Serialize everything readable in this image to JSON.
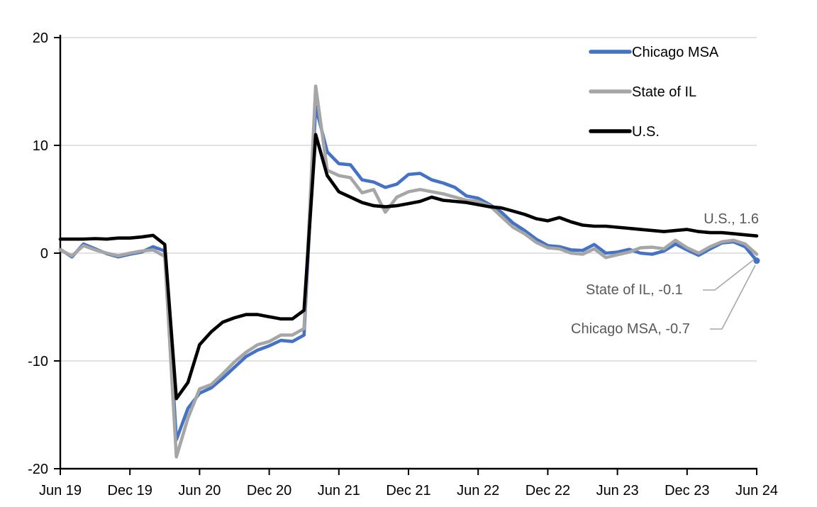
{
  "chart_data": {
    "type": "line",
    "title": "",
    "x_axis": {
      "tick_labels": [
        "Jun 19",
        "Dec 19",
        "Jun 20",
        "Dec 20",
        "Jun 21",
        "Dec 21",
        "Jun 22",
        "Dec 22",
        "Jun 23",
        "Dec 23",
        "Jun 24"
      ],
      "unit": "month",
      "points_per_series": 61
    },
    "y_axis": {
      "tick_labels": [
        "20",
        "10",
        "0",
        "-10",
        "-20"
      ],
      "tick_values": [
        20,
        10,
        0,
        -10,
        -20
      ],
      "ylim": [
        -20,
        20
      ],
      "grid": true
    },
    "series": [
      {
        "name": "Chicago MSA",
        "color": "#4472C4",
        "values": [
          0.35,
          -0.35,
          0.85,
          0.4,
          -0.05,
          -0.35,
          -0.1,
          0.1,
          0.6,
          0.2,
          -17.3,
          -14.4,
          -13.0,
          -12.5,
          -11.6,
          -10.6,
          -9.6,
          -9.0,
          -8.6,
          -8.1,
          -8.2,
          -7.6,
          13.6,
          9.4,
          8.3,
          8.2,
          6.8,
          6.6,
          6.1,
          6.4,
          7.3,
          7.4,
          6.8,
          6.5,
          6.1,
          5.3,
          5.1,
          4.5,
          3.8,
          2.8,
          2.1,
          1.3,
          0.7,
          0.6,
          0.3,
          0.25,
          0.8,
          0.0,
          0.1,
          0.35,
          0.0,
          -0.1,
          0.2,
          0.85,
          0.3,
          -0.2,
          0.4,
          0.95,
          1.05,
          0.6,
          -0.7
        ]
      },
      {
        "name": "State of IL",
        "color": "#A6A6A6",
        "values": [
          0.3,
          -0.25,
          0.7,
          0.3,
          0.0,
          -0.25,
          0.0,
          0.2,
          0.3,
          -0.3,
          -18.9,
          -15.3,
          -12.6,
          -12.2,
          -11.2,
          -10.1,
          -9.2,
          -8.5,
          -8.2,
          -7.6,
          -7.6,
          -7.0,
          15.5,
          7.7,
          7.2,
          7.0,
          5.6,
          5.9,
          3.8,
          5.2,
          5.7,
          5.9,
          5.7,
          5.5,
          5.2,
          4.9,
          4.8,
          4.4,
          3.4,
          2.4,
          1.8,
          1.0,
          0.5,
          0.4,
          0.0,
          -0.1,
          0.4,
          -0.4,
          -0.15,
          0.1,
          0.5,
          0.55,
          0.4,
          1.2,
          0.5,
          0.0,
          0.6,
          1.05,
          1.2,
          0.85,
          -0.1
        ]
      },
      {
        "name": "U.S.",
        "color": "#000000",
        "values": [
          1.3,
          1.3,
          1.3,
          1.35,
          1.3,
          1.4,
          1.4,
          1.5,
          1.65,
          0.8,
          -13.5,
          -12.0,
          -8.5,
          -7.3,
          -6.4,
          -6.0,
          -5.7,
          -5.7,
          -5.9,
          -6.1,
          -6.1,
          -5.3,
          11.0,
          7.2,
          5.7,
          5.2,
          4.7,
          4.4,
          4.3,
          4.4,
          4.6,
          4.8,
          5.2,
          4.9,
          4.8,
          4.7,
          4.5,
          4.3,
          4.2,
          3.9,
          3.6,
          3.2,
          3.0,
          3.3,
          2.9,
          2.6,
          2.5,
          2.5,
          2.4,
          2.3,
          2.2,
          2.1,
          2.0,
          2.1,
          2.2,
          2.0,
          1.9,
          1.9,
          1.8,
          1.7,
          1.6
        ]
      }
    ],
    "legend": {
      "position": "top-right",
      "items": [
        "Chicago MSA",
        "State of IL",
        "U.S."
      ]
    },
    "annotations": [
      {
        "text": "U.S., 1.6",
        "series": "U.S.",
        "end_value": 1.6
      },
      {
        "text": "State of IL, -0.1",
        "series": "State of IL",
        "end_value": -0.1
      },
      {
        "text": "Chicago MSA, -0.7",
        "series": "Chicago MSA",
        "end_value": -0.7
      }
    ],
    "end_dot_series": "Chicago MSA",
    "colors": {
      "gridline": "#D9D9D9",
      "axis": "#000000",
      "leader_line": "#A6A6A6",
      "annotation_text": "#595959"
    }
  }
}
